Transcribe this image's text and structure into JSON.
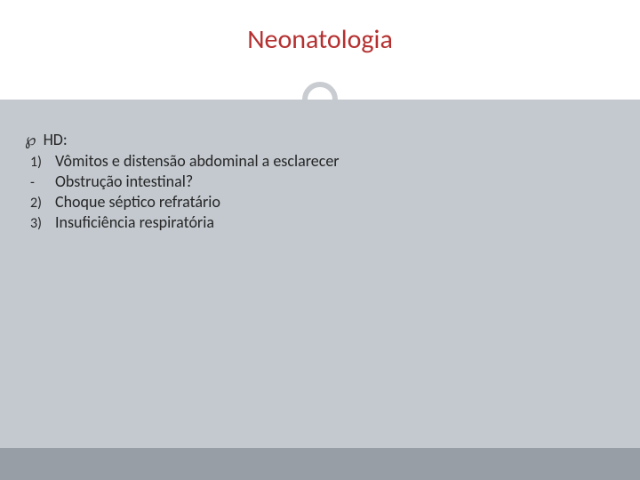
{
  "colors": {
    "title": "#b43030",
    "body_bg": "#c3c9cf",
    "circle_border": "#c9ccd1",
    "footer_bg": "#989ea6",
    "text": "#262626",
    "hr": "#3a3a3a"
  },
  "title": "Neonatologia",
  "heading": "HD:",
  "items": [
    {
      "marker": "1)",
      "text": "Vômitos e distensão abdominal a esclarecer"
    },
    {
      "marker": "-",
      "text": "Obstrução intestinal?"
    },
    {
      "marker": "2)",
      "text": "Choque séptico refratário"
    },
    {
      "marker": "3)",
      "text": "Insuficiência respiratória"
    }
  ]
}
